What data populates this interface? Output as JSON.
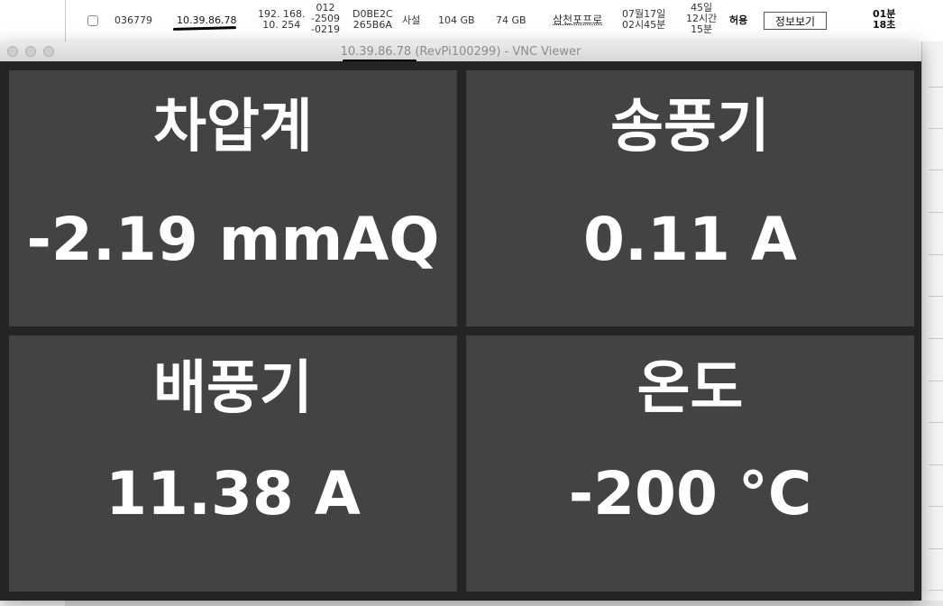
{
  "table_row": {
    "id": "036779",
    "ip": "10.39.86.78",
    "private_ip": [
      "192. 168.",
      "10. 254"
    ],
    "phone": [
      "012",
      "-2509",
      "-0219"
    ],
    "mac": [
      "D0BE2C",
      "265B6A"
    ],
    "type": "사설",
    "total_storage": "104 GB",
    "used_storage": "74 GB",
    "owner": "삼천포프로",
    "date": [
      "07월17일",
      "02시45분"
    ],
    "duration": [
      "45일",
      "12시간",
      "15분"
    ],
    "permission": "허용",
    "info_button": "정보보기",
    "elapsed": [
      "01분",
      "18초"
    ]
  },
  "vnc": {
    "title_ip": "10.39.86.78",
    "title_rest": " (RevPi100299) - VNC Viewer"
  },
  "panels": [
    {
      "label": "차압계",
      "value": "-2.19 mmAQ"
    },
    {
      "label": "송풍기",
      "value": "0.11 A"
    },
    {
      "label": "배풍기",
      "value": "11.38 A"
    },
    {
      "label": "온도",
      "value": "-200 °C"
    }
  ]
}
